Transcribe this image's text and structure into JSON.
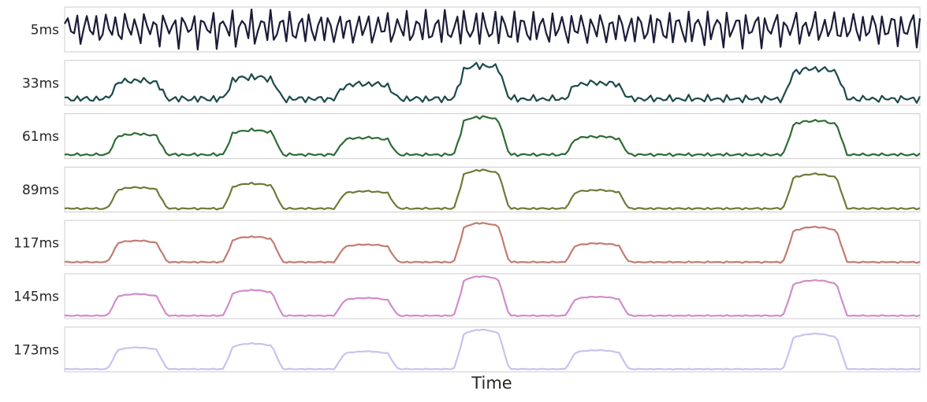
{
  "chart_data": {
    "type": "line",
    "xlabel": "Time",
    "ylabel": "",
    "grid": false,
    "legend": "none",
    "x_ticks_shown": false,
    "y_ticks_shown": false,
    "points_per_series": 271,
    "series": [
      {
        "label": "5ms",
        "color": "#1b1b3a",
        "smoothing_ms": 5,
        "ripple_amplitude": 0.78,
        "envelope_gain": 0.05
      },
      {
        "label": "33ms",
        "color": "#1c4a4a",
        "smoothing_ms": 33,
        "ripple_amplitude": 0.34,
        "envelope_gain": 0.46
      },
      {
        "label": "61ms",
        "color": "#2e6b35",
        "smoothing_ms": 61,
        "ripple_amplitude": 0.18,
        "envelope_gain": 0.66
      },
      {
        "label": "89ms",
        "color": "#6f7a39",
        "smoothing_ms": 89,
        "ripple_amplitude": 0.12,
        "envelope_gain": 0.72
      },
      {
        "label": "117ms",
        "color": "#c27c72",
        "smoothing_ms": 117,
        "ripple_amplitude": 0.09,
        "envelope_gain": 0.74
      },
      {
        "label": "145ms",
        "color": "#d18ccb",
        "smoothing_ms": 145,
        "ripple_amplitude": 0.07,
        "envelope_gain": 0.75
      },
      {
        "label": "173ms",
        "color": "#c7c3ef",
        "smoothing_ms": 173,
        "ripple_amplitude": 0.06,
        "envelope_gain": 0.76
      }
    ],
    "bursts": [
      {
        "start": 0.05,
        "end": 0.12,
        "strength": 0.55
      },
      {
        "start": 0.185,
        "end": 0.255,
        "strength": 0.65
      },
      {
        "start": 0.315,
        "end": 0.39,
        "strength": 0.45
      },
      {
        "start": 0.455,
        "end": 0.52,
        "strength": 1.0
      },
      {
        "start": 0.585,
        "end": 0.66,
        "strength": 0.48
      },
      {
        "start": 0.84,
        "end": 0.915,
        "strength": 0.9
      }
    ]
  }
}
